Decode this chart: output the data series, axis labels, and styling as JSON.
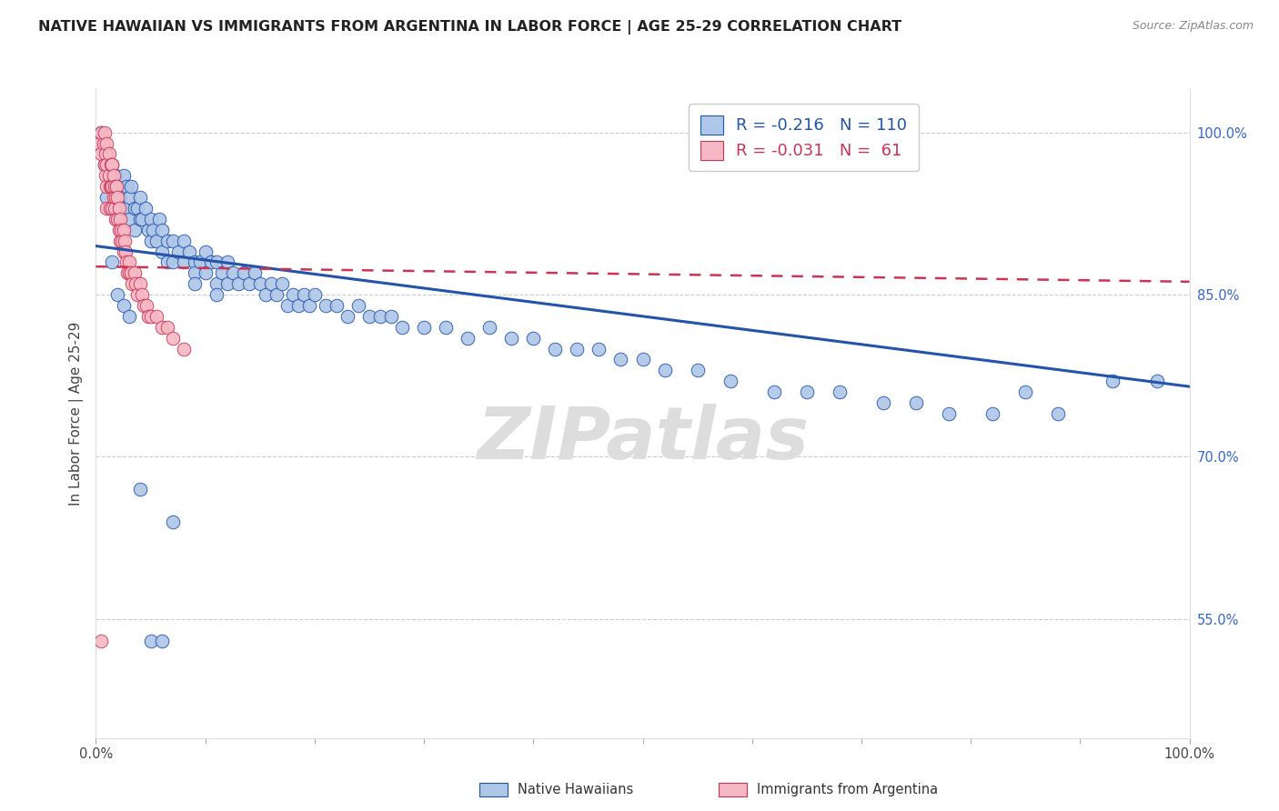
{
  "title": "NATIVE HAWAIIAN VS IMMIGRANTS FROM ARGENTINA IN LABOR FORCE | AGE 25-29 CORRELATION CHART",
  "source": "Source: ZipAtlas.com",
  "ylabel": "In Labor Force | Age 25-29",
  "right_yticks": [
    "100.0%",
    "85.0%",
    "70.0%",
    "55.0%"
  ],
  "right_ytick_vals": [
    1.0,
    0.85,
    0.7,
    0.55
  ],
  "xmin": 0.0,
  "xmax": 1.0,
  "ymin": 0.44,
  "ymax": 1.04,
  "blue_color": "#aec6e8",
  "pink_color": "#f5b8c4",
  "blue_line_color": "#2255aa",
  "pink_line_color": "#cc3355",
  "legend_blue_label": "R = -0.216   N = 110",
  "legend_pink_label": "R = -0.031   N =  61",
  "watermark": "ZIPatlas",
  "bottom_legend_blue": "Native Hawaiians",
  "bottom_legend_pink": "Immigrants from Argentina",
  "blue_trend_x0": 0.0,
  "blue_trend_y0": 0.895,
  "blue_trend_x1": 1.0,
  "blue_trend_y1": 0.765,
  "pink_trend_x0": 0.0,
  "pink_trend_y0": 0.876,
  "pink_trend_x1": 1.0,
  "pink_trend_y1": 0.862,
  "blue_scatter_x": [
    0.005,
    0.008,
    0.01,
    0.01,
    0.012,
    0.015,
    0.015,
    0.018,
    0.02,
    0.02,
    0.022,
    0.025,
    0.025,
    0.028,
    0.03,
    0.03,
    0.032,
    0.035,
    0.035,
    0.038,
    0.04,
    0.04,
    0.042,
    0.045,
    0.048,
    0.05,
    0.05,
    0.052,
    0.055,
    0.058,
    0.06,
    0.06,
    0.065,
    0.065,
    0.07,
    0.07,
    0.075,
    0.08,
    0.08,
    0.085,
    0.09,
    0.09,
    0.095,
    0.1,
    0.1,
    0.105,
    0.11,
    0.11,
    0.115,
    0.12,
    0.12,
    0.125,
    0.13,
    0.135,
    0.14,
    0.145,
    0.15,
    0.155,
    0.16,
    0.165,
    0.17,
    0.175,
    0.18,
    0.185,
    0.19,
    0.195,
    0.2,
    0.21,
    0.22,
    0.23,
    0.24,
    0.25,
    0.26,
    0.27,
    0.28,
    0.3,
    0.32,
    0.34,
    0.36,
    0.38,
    0.4,
    0.42,
    0.44,
    0.46,
    0.48,
    0.5,
    0.52,
    0.55,
    0.58,
    0.62,
    0.65,
    0.68,
    0.72,
    0.75,
    0.78,
    0.82,
    0.85,
    0.88,
    0.93,
    0.97,
    0.015,
    0.02,
    0.025,
    0.03,
    0.04,
    0.05,
    0.06,
    0.07,
    0.09,
    0.11
  ],
  "blue_scatter_y": [
    1.0,
    0.97,
    0.98,
    0.94,
    0.96,
    0.97,
    0.95,
    0.96,
    0.95,
    0.93,
    0.94,
    0.96,
    0.93,
    0.95,
    0.94,
    0.92,
    0.95,
    0.93,
    0.91,
    0.93,
    0.92,
    0.94,
    0.92,
    0.93,
    0.91,
    0.92,
    0.9,
    0.91,
    0.9,
    0.92,
    0.91,
    0.89,
    0.9,
    0.88,
    0.9,
    0.88,
    0.89,
    0.9,
    0.88,
    0.89,
    0.88,
    0.87,
    0.88,
    0.89,
    0.87,
    0.88,
    0.88,
    0.86,
    0.87,
    0.88,
    0.86,
    0.87,
    0.86,
    0.87,
    0.86,
    0.87,
    0.86,
    0.85,
    0.86,
    0.85,
    0.86,
    0.84,
    0.85,
    0.84,
    0.85,
    0.84,
    0.85,
    0.84,
    0.84,
    0.83,
    0.84,
    0.83,
    0.83,
    0.83,
    0.82,
    0.82,
    0.82,
    0.81,
    0.82,
    0.81,
    0.81,
    0.8,
    0.8,
    0.8,
    0.79,
    0.79,
    0.78,
    0.78,
    0.77,
    0.76,
    0.76,
    0.76,
    0.75,
    0.75,
    0.74,
    0.74,
    0.76,
    0.74,
    0.77,
    0.77,
    0.88,
    0.85,
    0.84,
    0.83,
    0.67,
    0.53,
    0.53,
    0.64,
    0.86,
    0.85
  ],
  "pink_scatter_x": [
    0.003,
    0.005,
    0.005,
    0.007,
    0.008,
    0.008,
    0.009,
    0.009,
    0.01,
    0.01,
    0.01,
    0.01,
    0.012,
    0.012,
    0.013,
    0.013,
    0.014,
    0.014,
    0.015,
    0.015,
    0.015,
    0.016,
    0.016,
    0.017,
    0.017,
    0.018,
    0.018,
    0.019,
    0.02,
    0.02,
    0.021,
    0.021,
    0.022,
    0.022,
    0.023,
    0.024,
    0.025,
    0.025,
    0.026,
    0.027,
    0.028,
    0.029,
    0.03,
    0.03,
    0.032,
    0.033,
    0.035,
    0.036,
    0.038,
    0.04,
    0.042,
    0.044,
    0.046,
    0.048,
    0.05,
    0.055,
    0.06,
    0.065,
    0.07,
    0.08,
    0.005
  ],
  "pink_scatter_y": [
    0.99,
    1.0,
    0.98,
    0.99,
    0.97,
    1.0,
    0.98,
    0.96,
    0.99,
    0.97,
    0.95,
    0.93,
    0.98,
    0.96,
    0.95,
    0.93,
    0.97,
    0.95,
    0.97,
    0.95,
    0.93,
    0.96,
    0.94,
    0.95,
    0.93,
    0.94,
    0.92,
    0.95,
    0.94,
    0.92,
    0.93,
    0.91,
    0.92,
    0.9,
    0.91,
    0.9,
    0.91,
    0.89,
    0.9,
    0.89,
    0.88,
    0.87,
    0.88,
    0.87,
    0.87,
    0.86,
    0.87,
    0.86,
    0.85,
    0.86,
    0.85,
    0.84,
    0.84,
    0.83,
    0.83,
    0.83,
    0.82,
    0.82,
    0.81,
    0.8,
    0.53
  ]
}
